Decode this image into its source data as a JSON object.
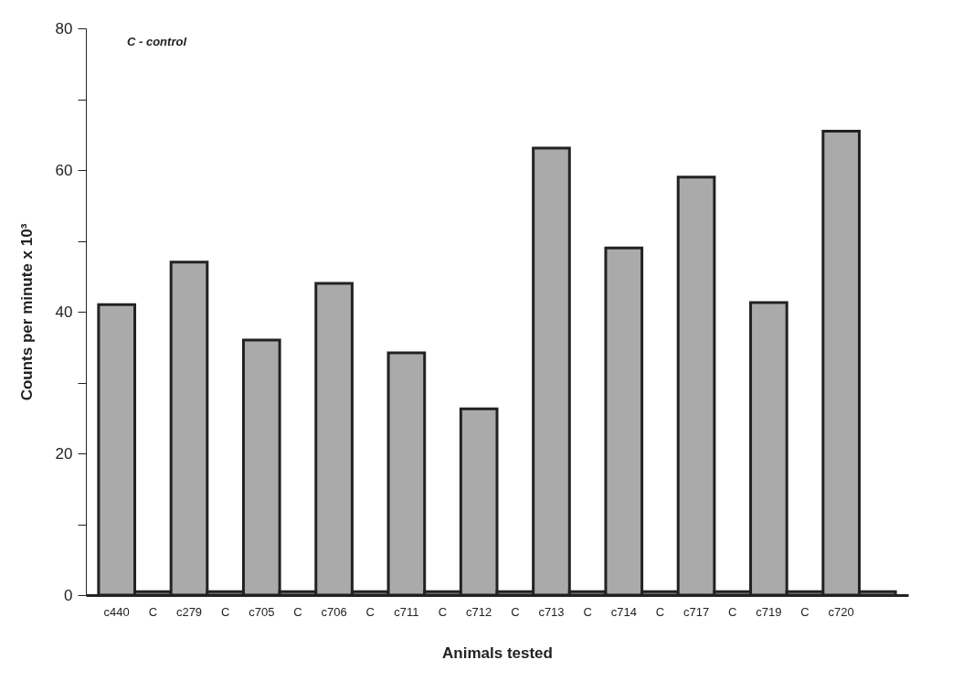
{
  "chart_data": {
    "type": "bar",
    "xlabel": "Animals tested",
    "ylabel": "Counts per minute x 10³",
    "annotations": [
      "C - control"
    ],
    "categories": [
      "c440",
      "C",
      "c279",
      "C",
      "c705",
      "C",
      "c706",
      "C",
      "c711",
      "C",
      "c712",
      "C",
      "c713",
      "C",
      "c714",
      "C",
      "c717",
      "C",
      "c719",
      "C",
      "c720",
      null
    ],
    "values": [
      41,
      0.5,
      47,
      0.5,
      36,
      0.5,
      44,
      0.5,
      34.2,
      0.5,
      26.3,
      0.5,
      63.1,
      0.5,
      49,
      0.5,
      59,
      0.5,
      41.3,
      0.5,
      65.5,
      0.5
    ],
    "color": "#aaaaaa",
    "ylim": [
      0,
      80
    ],
    "yticks": [
      0,
      {
        "value": 10,
        "label": null
      },
      20,
      {
        "value": 30,
        "label": null
      },
      40,
      {
        "value": 50,
        "label": null
      },
      60,
      {
        "value": 70,
        "label": null
      },
      80
    ],
    "grid": false
  }
}
